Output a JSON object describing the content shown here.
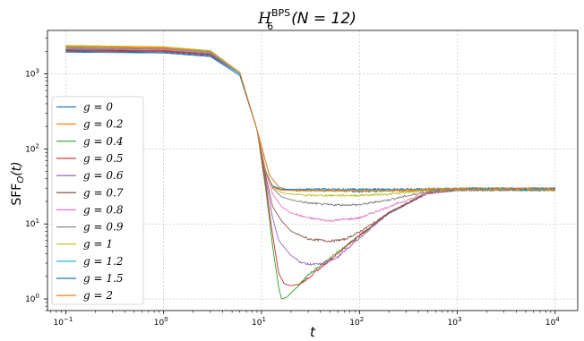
{
  "chart_data": {
    "type": "line",
    "title_main": "H",
    "title_sup": "BPS",
    "title_sub": "6",
    "title_rest": "(N = 12)",
    "xlabel": "t",
    "ylabel_main": "SFF",
    "ylabel_sub": "O",
    "ylabel_rest": "(t)",
    "xscale": "log",
    "yscale": "log",
    "xlim": [
      0.065,
      17000
    ],
    "ylim": [
      0.7,
      3800
    ],
    "grid": true,
    "legend_position": "left",
    "x_ticks": [
      {
        "value": 0.1,
        "base": "10",
        "exp": "−1"
      },
      {
        "value": 1,
        "base": "10",
        "exp": "0"
      },
      {
        "value": 10,
        "base": "10",
        "exp": "1"
      },
      {
        "value": 100,
        "base": "10",
        "exp": "2"
      },
      {
        "value": 1000,
        "base": "10",
        "exp": "3"
      },
      {
        "value": 10000,
        "base": "10",
        "exp": "4"
      }
    ],
    "y_ticks": [
      {
        "value": 1,
        "base": "10",
        "exp": "0"
      },
      {
        "value": 10,
        "base": "10",
        "exp": "1"
      },
      {
        "value": 100,
        "base": "10",
        "exp": "2"
      },
      {
        "value": 1000,
        "base": "10",
        "exp": "3"
      }
    ],
    "series": [
      {
        "name": "g = 0",
        "color": "#1f77b4",
        "x": [
          0.1,
          1,
          3,
          6,
          9,
          12,
          15,
          20,
          30,
          50,
          100,
          200,
          500,
          1000,
          10000
        ],
        "y": [
          2000,
          1950,
          1750,
          1000,
          180,
          45,
          31,
          28,
          28,
          28,
          27,
          28,
          28,
          29,
          29
        ]
      },
      {
        "name": "g = 0.2",
        "color": "#ff7f0e",
        "x": [
          0.1,
          1,
          3,
          6,
          9,
          12,
          15,
          20,
          30,
          50,
          100,
          200,
          500,
          1000,
          10000
        ],
        "y": [
          2350,
          2250,
          2000,
          1050,
          180,
          45,
          31,
          28,
          28,
          28,
          28,
          28,
          28,
          29,
          29
        ]
      },
      {
        "name": "g = 0.4",
        "color": "#2ca02c",
        "x": [
          0.1,
          1,
          3,
          6,
          9,
          11,
          13,
          15,
          16,
          18,
          20,
          25,
          30,
          50,
          100,
          200,
          500,
          1000,
          10000
        ],
        "y": [
          2100,
          2050,
          1850,
          1000,
          180,
          30,
          5,
          1.4,
          1.0,
          1.05,
          1.2,
          1.6,
          2.1,
          3.5,
          7,
          14,
          26,
          29,
          29
        ]
      },
      {
        "name": "g = 0.5",
        "color": "#d62728",
        "x": [
          0.1,
          1,
          3,
          6,
          9,
          11,
          13,
          15,
          17,
          20,
          25,
          30,
          50,
          100,
          200,
          500,
          1000,
          10000
        ],
        "y": [
          2050,
          2000,
          1800,
          1000,
          180,
          35,
          7,
          2.2,
          1.6,
          1.5,
          1.6,
          1.9,
          3.3,
          7,
          14,
          26,
          29,
          29
        ]
      },
      {
        "name": "g = 0.6",
        "color": "#9467bd",
        "x": [
          0.1,
          1,
          3,
          6,
          9,
          11,
          13,
          15,
          20,
          25,
          30,
          40,
          60,
          100,
          200,
          500,
          1000,
          10000
        ],
        "y": [
          2100,
          2050,
          1850,
          1000,
          180,
          40,
          12,
          6,
          3.8,
          3.1,
          2.9,
          2.9,
          3.6,
          6.5,
          14,
          26,
          29,
          29
        ]
      },
      {
        "name": "g = 0.7",
        "color": "#8c564b",
        "x": [
          0.1,
          1,
          3,
          6,
          9,
          11,
          13,
          16,
          20,
          30,
          50,
          70,
          100,
          200,
          500,
          1000,
          10000
        ],
        "y": [
          2100,
          2050,
          1850,
          1000,
          180,
          45,
          17,
          11,
          8,
          6.3,
          5.9,
          6.2,
          7.8,
          14,
          26,
          29,
          29
        ]
      },
      {
        "name": "g = 0.8",
        "color": "#e377c2",
        "x": [
          0.1,
          1,
          3,
          6,
          9,
          11,
          13,
          16,
          20,
          30,
          50,
          100,
          200,
          500,
          1000,
          10000
        ],
        "y": [
          2150,
          2100,
          1900,
          1000,
          180,
          50,
          25,
          17,
          14,
          12,
          11,
          12,
          17,
          26,
          29,
          29
        ]
      },
      {
        "name": "g = 0.9",
        "color": "#7f7f7f",
        "x": [
          0.1,
          1,
          3,
          6,
          9,
          11,
          13,
          16,
          20,
          30,
          50,
          100,
          200,
          500,
          1000,
          10000
        ],
        "y": [
          2200,
          2150,
          1950,
          1000,
          180,
          52,
          30,
          23,
          21,
          19,
          18,
          18,
          21,
          27,
          29,
          29
        ]
      },
      {
        "name": "g = 1",
        "color": "#bcbd22",
        "x": [
          0.1,
          1,
          3,
          6,
          9,
          11,
          13,
          16,
          20,
          30,
          50,
          100,
          200,
          500,
          1000,
          10000
        ],
        "y": [
          2400,
          2300,
          2050,
          1050,
          180,
          50,
          31,
          26,
          25,
          24,
          24,
          24,
          25,
          28,
          29,
          29
        ]
      },
      {
        "name": "g = 1.2",
        "color": "#17becf",
        "x": [
          0.1,
          1,
          3,
          6,
          9,
          11,
          13,
          16,
          20,
          30,
          50,
          100,
          200,
          500,
          1000,
          10000
        ],
        "y": [
          2250,
          2200,
          1950,
          1000,
          180,
          50,
          32,
          28,
          28,
          28,
          28,
          28,
          28,
          29,
          29,
          29
        ]
      },
      {
        "name": "g = 1.5",
        "color": "#1f77b4",
        "x": [
          0.1,
          1,
          3,
          6,
          9,
          11,
          13,
          16,
          20,
          30,
          50,
          100,
          200,
          500,
          1000,
          10000
        ],
        "y": [
          1950,
          1900,
          1700,
          950,
          180,
          48,
          32,
          29,
          29,
          29,
          29,
          29,
          29,
          29,
          29,
          29
        ]
      },
      {
        "name": "g = 2",
        "color": "#ff7f0e",
        "x": [
          0.1,
          1,
          3,
          6,
          9,
          11,
          13,
          16,
          20,
          30,
          50,
          100,
          200,
          500,
          1000,
          10000
        ],
        "y": [
          2300,
          2200,
          2000,
          1050,
          180,
          48,
          31,
          28,
          28,
          28,
          28,
          28,
          28,
          29,
          29,
          29
        ]
      }
    ]
  }
}
